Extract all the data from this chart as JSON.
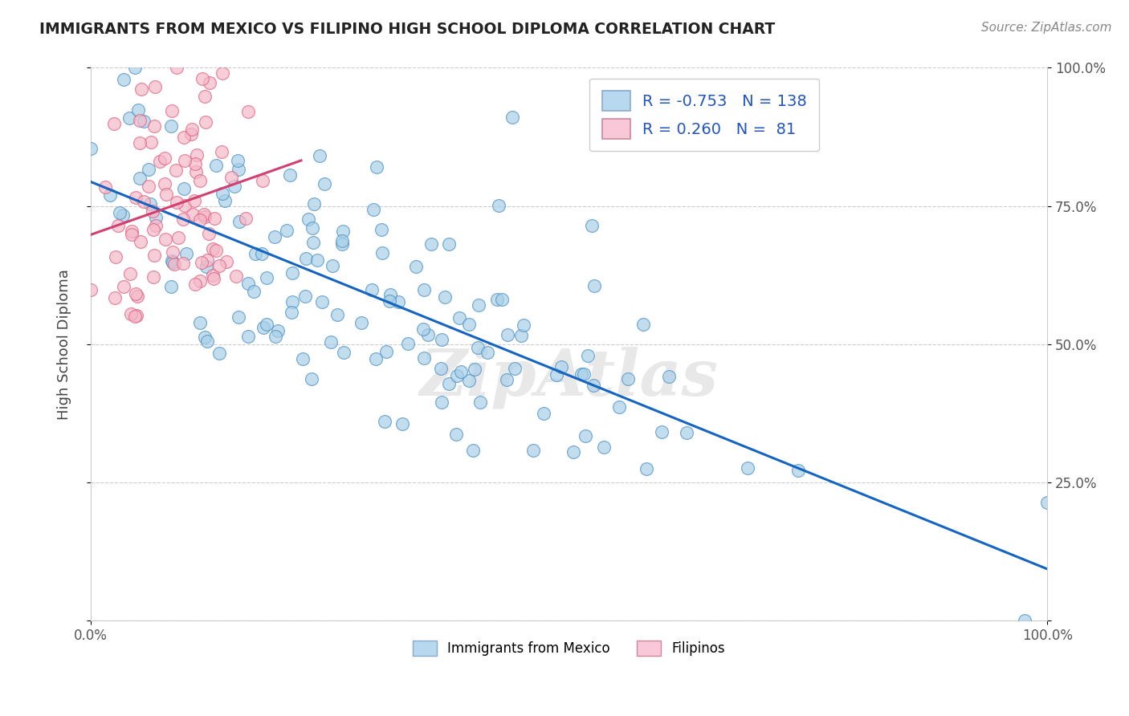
{
  "title": "IMMIGRANTS FROM MEXICO VS FILIPINO HIGH SCHOOL DIPLOMA CORRELATION CHART",
  "source": "Source: ZipAtlas.com",
  "ylabel": "High School Diploma",
  "legend_label1": "Immigrants from Mexico",
  "legend_label2": "Filipinos",
  "R1": -0.753,
  "N1": 138,
  "R2": 0.26,
  "N2": 81,
  "color_blue": "#a8cfe8",
  "color_blue_edge": "#4a90c4",
  "color_blue_line": "#1565c0",
  "color_pink": "#f4b8c8",
  "color_pink_edge": "#e06080",
  "color_pink_line": "#d04070",
  "color_blue_legend": "#b8d8f0",
  "color_pink_legend": "#f8c8d8",
  "background_color": "#ffffff",
  "watermark": "ZipAtlas",
  "grid_color": "#cccccc",
  "title_color": "#222222",
  "source_color": "#888888"
}
